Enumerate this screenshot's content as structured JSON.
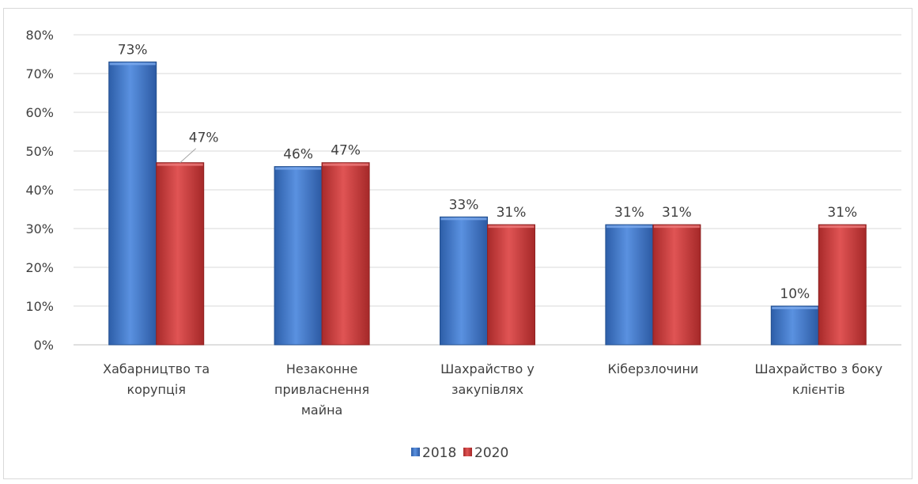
{
  "chart_data": {
    "type": "bar",
    "title": "",
    "xlabel": "",
    "ylabel": "",
    "ylim": [
      0,
      80
    ],
    "yticks": [
      "0%",
      "10%",
      "20%",
      "30%",
      "40%",
      "50%",
      "60%",
      "70%",
      "80%"
    ],
    "grid": true,
    "legend_position": "bottom",
    "categories": [
      [
        "Хабарництво та",
        "корупція"
      ],
      [
        "Незаконне",
        "привласнення",
        "майна"
      ],
      [
        "Шахрайство у",
        "закупівлях"
      ],
      [
        "Кіберзлочини"
      ],
      [
        "Шахрайство з боку",
        "клієнтів"
      ]
    ],
    "series": [
      {
        "name": "2018",
        "color": "#3d73c4",
        "values": [
          73,
          46,
          33,
          31,
          10
        ],
        "labels": [
          "73%",
          "46%",
          "33%",
          "31%",
          "10%"
        ]
      },
      {
        "name": "2020",
        "color": "#c93a3a",
        "values": [
          47,
          47,
          31,
          31,
          31
        ],
        "labels": [
          "47%",
          "47%",
          "31%",
          "31%",
          "31%"
        ]
      }
    ]
  }
}
